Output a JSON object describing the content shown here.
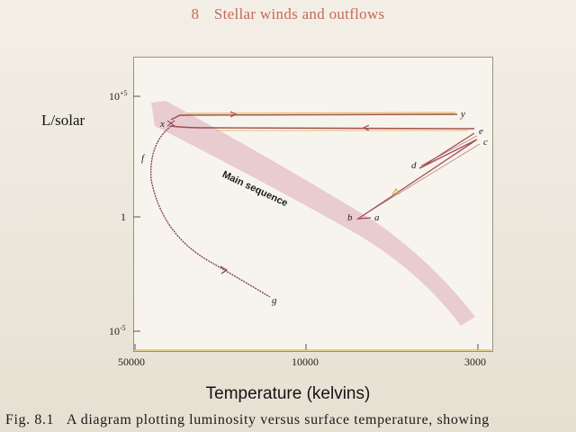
{
  "header": {
    "chapter_number": "8",
    "chapter_title": "Stellar winds and outflows"
  },
  "chart_data": {
    "type": "line",
    "title": "",
    "xlabel": "Temperature (kelvins)",
    "ylabel": "L/solar",
    "x_scale": "log",
    "y_scale": "log",
    "x_direction": "decreasing",
    "x_ticks": [
      "50000",
      "10000",
      "3000"
    ],
    "y_ticks": [
      {
        "base": "10",
        "exp": "+5"
      },
      {
        "base": "1",
        "exp": ""
      },
      {
        "base": "10",
        "exp": "-5"
      }
    ],
    "band_label": "Main sequence",
    "point_labels": [
      "a",
      "b",
      "c",
      "d",
      "e",
      "f",
      "g",
      "x",
      "y"
    ],
    "tracks": [
      {
        "path": [
          "a",
          "b",
          "c",
          "d",
          "e"
        ],
        "x": [
          5200,
          5600,
          3000,
          4100,
          3050
        ],
        "y": [
          1,
          1,
          2000,
          30,
          3000
        ]
      },
      {
        "path": [
          "e",
          "x"
        ],
        "x": [
          3050,
          36000
        ],
        "y": [
          3000,
          5000
        ]
      },
      {
        "path": [
          "x",
          "f",
          "g"
        ],
        "x": [
          36000,
          46000,
          12000
        ],
        "y": [
          5000,
          50,
          0.0004
        ]
      },
      {
        "path": [
          "x",
          "y"
        ],
        "x": [
          36000,
          3300
        ],
        "y": [
          5000,
          5000
        ]
      }
    ],
    "colors": {
      "track": "#a14a50",
      "highlight": "#d8b23a",
      "band": "#e7c8cb"
    }
  },
  "caption": {
    "fig_label": "Fig. 8.1",
    "text": "A diagram plotting luminosity versus surface temperature, showing"
  }
}
